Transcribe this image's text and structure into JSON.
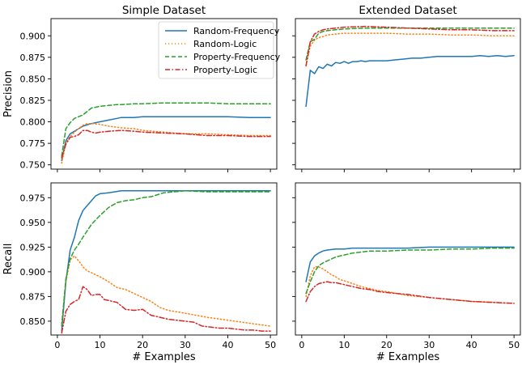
{
  "colors": {
    "Random-Frequency": "#1f77b4",
    "Random-Logic": "#ff7f0e",
    "Property-Frequency": "#2ca02c",
    "Property-Logic": "#d62728"
  },
  "dashes": {
    "Random-Frequency": "none",
    "Random-Logic": "1.2,2.8",
    "Property-Frequency": "5,3",
    "Property-Logic": "6,2.5,1.5,2.5"
  },
  "chart_data": [
    {
      "type": "line",
      "title": "Simple Dataset",
      "ylabel": "Precision",
      "xlabel": "",
      "xlim": [
        -1.5,
        51.5
      ],
      "ylim": [
        0.745,
        0.92
      ],
      "xticks": [
        0,
        10,
        20,
        30,
        40,
        50
      ],
      "yticks": [
        0.75,
        0.775,
        0.8,
        0.825,
        0.85,
        0.875,
        0.9
      ],
      "ytick_labels": [
        "0.750",
        "0.775",
        "0.800",
        "0.825",
        "0.850",
        "0.875",
        "0.900"
      ],
      "legend": "top-right",
      "series": [
        {
          "name": "Random-Frequency",
          "x": [
            1,
            2,
            3,
            4,
            5,
            6,
            8,
            10,
            12,
            14,
            15,
            18,
            20,
            25,
            30,
            35,
            40,
            45,
            50
          ],
          "y": [
            0.755,
            0.778,
            0.786,
            0.789,
            0.792,
            0.795,
            0.798,
            0.8,
            0.802,
            0.804,
            0.805,
            0.805,
            0.806,
            0.806,
            0.806,
            0.806,
            0.806,
            0.805,
            0.805
          ]
        },
        {
          "name": "Random-Logic",
          "x": [
            1,
            2,
            3,
            4,
            5,
            6,
            7,
            8,
            10,
            12,
            15,
            18,
            20,
            25,
            30,
            35,
            40,
            45,
            50
          ],
          "y": [
            0.752,
            0.775,
            0.783,
            0.788,
            0.792,
            0.796,
            0.798,
            0.798,
            0.797,
            0.795,
            0.793,
            0.792,
            0.79,
            0.788,
            0.786,
            0.786,
            0.785,
            0.784,
            0.784
          ]
        },
        {
          "name": "Property-Frequency",
          "x": [
            1,
            2,
            3,
            4,
            5,
            6,
            8,
            10,
            12,
            14,
            15,
            18,
            20,
            25,
            30,
            35,
            40,
            45,
            50
          ],
          "y": [
            0.76,
            0.792,
            0.799,
            0.804,
            0.806,
            0.808,
            0.816,
            0.818,
            0.819,
            0.82,
            0.82,
            0.821,
            0.821,
            0.822,
            0.822,
            0.822,
            0.821,
            0.821,
            0.821
          ]
        },
        {
          "name": "Property-Logic",
          "x": [
            1,
            2,
            3,
            4,
            5,
            6,
            7,
            8,
            9,
            10,
            12,
            15,
            18,
            20,
            25,
            30,
            35,
            40,
            45,
            50
          ],
          "y": [
            0.758,
            0.774,
            0.782,
            0.783,
            0.785,
            0.79,
            0.79,
            0.788,
            0.787,
            0.788,
            0.789,
            0.79,
            0.789,
            0.788,
            0.787,
            0.786,
            0.784,
            0.784,
            0.783,
            0.783
          ]
        }
      ]
    },
    {
      "type": "line",
      "title": "Extended Dataset",
      "ylabel": "",
      "xlabel": "",
      "xlim": [
        -1.5,
        51.5
      ],
      "ylim": [
        0.745,
        0.92
      ],
      "xticks": [
        0,
        10,
        20,
        30,
        40,
        50
      ],
      "yticks": [
        0.75,
        0.775,
        0.8,
        0.825,
        0.85,
        0.875,
        0.9
      ],
      "series": [
        {
          "name": "Random-Frequency",
          "x": [
            1,
            2,
            3,
            4,
            5,
            6,
            7,
            8,
            9,
            10,
            11,
            12,
            13,
            14,
            15,
            16,
            17,
            18,
            20,
            22,
            24,
            26,
            28,
            30,
            32,
            34,
            36,
            38,
            40,
            42,
            44,
            46,
            48,
            50
          ],
          "y": [
            0.818,
            0.86,
            0.856,
            0.864,
            0.862,
            0.867,
            0.865,
            0.869,
            0.868,
            0.87,
            0.868,
            0.87,
            0.87,
            0.871,
            0.87,
            0.871,
            0.871,
            0.871,
            0.871,
            0.872,
            0.873,
            0.874,
            0.874,
            0.875,
            0.876,
            0.876,
            0.876,
            0.876,
            0.876,
            0.877,
            0.876,
            0.877,
            0.876,
            0.877
          ]
        },
        {
          "name": "Random-Logic",
          "x": [
            1,
            2,
            3,
            4,
            5,
            6,
            8,
            10,
            15,
            20,
            25,
            30,
            35,
            40,
            45,
            50
          ],
          "y": [
            0.866,
            0.888,
            0.895,
            0.898,
            0.899,
            0.901,
            0.902,
            0.903,
            0.903,
            0.903,
            0.902,
            0.902,
            0.901,
            0.901,
            0.9,
            0.9
          ]
        },
        {
          "name": "Property-Frequency",
          "x": [
            1,
            2,
            3,
            4,
            5,
            6,
            8,
            10,
            15,
            20,
            25,
            30,
            35,
            40,
            45,
            50
          ],
          "y": [
            0.872,
            0.893,
            0.896,
            0.903,
            0.905,
            0.906,
            0.907,
            0.908,
            0.909,
            0.909,
            0.909,
            0.909,
            0.909,
            0.909,
            0.909,
            0.909
          ]
        },
        {
          "name": "Property-Logic",
          "x": [
            1,
            2,
            3,
            4,
            5,
            6,
            8,
            10,
            15,
            20,
            25,
            30,
            35,
            40,
            45,
            50
          ],
          "y": [
            0.865,
            0.893,
            0.902,
            0.905,
            0.907,
            0.908,
            0.909,
            0.91,
            0.911,
            0.91,
            0.909,
            0.908,
            0.907,
            0.907,
            0.906,
            0.906
          ]
        }
      ]
    },
    {
      "type": "line",
      "title": "",
      "ylabel": "Recall",
      "xlabel": "# Examples",
      "xlim": [
        -1.5,
        51.5
      ],
      "ylim": [
        0.836,
        0.99
      ],
      "xticks": [
        0,
        10,
        20,
        30,
        40,
        50
      ],
      "xtick_labels": [
        "0",
        "10",
        "20",
        "30",
        "40",
        "50"
      ],
      "yticks": [
        0.85,
        0.875,
        0.9,
        0.925,
        0.95,
        0.975
      ],
      "ytick_labels": [
        "0.850",
        "0.875",
        "0.900",
        "0.925",
        "0.950",
        "0.975"
      ],
      "series": [
        {
          "name": "Random-Frequency",
          "x": [
            1,
            2,
            3,
            4,
            5,
            6,
            7,
            8,
            9,
            10,
            12,
            15,
            20,
            25,
            30,
            35,
            40,
            45,
            50
          ],
          "y": [
            0.84,
            0.89,
            0.922,
            0.935,
            0.952,
            0.962,
            0.967,
            0.972,
            0.977,
            0.979,
            0.98,
            0.982,
            0.982,
            0.982,
            0.982,
            0.982,
            0.982,
            0.982,
            0.982
          ]
        },
        {
          "name": "Random-Logic",
          "x": [
            1,
            2,
            3,
            4,
            5,
            6,
            7,
            8,
            10,
            12,
            14,
            15,
            16,
            18,
            20,
            22,
            24,
            26,
            30,
            35,
            40,
            45,
            50
          ],
          "y": [
            0.848,
            0.89,
            0.912,
            0.916,
            0.911,
            0.905,
            0.901,
            0.899,
            0.895,
            0.89,
            0.884,
            0.883,
            0.882,
            0.878,
            0.874,
            0.87,
            0.864,
            0.861,
            0.858,
            0.854,
            0.851,
            0.848,
            0.845
          ]
        },
        {
          "name": "Property-Frequency",
          "x": [
            1,
            2,
            3,
            4,
            5,
            6,
            8,
            10,
            12,
            14,
            16,
            18,
            20,
            22,
            25,
            30,
            35,
            40,
            45,
            50
          ],
          "y": [
            0.845,
            0.893,
            0.913,
            0.922,
            0.928,
            0.935,
            0.948,
            0.957,
            0.965,
            0.97,
            0.972,
            0.973,
            0.975,
            0.976,
            0.98,
            0.982,
            0.981,
            0.981,
            0.981,
            0.981
          ]
        },
        {
          "name": "Property-Logic",
          "x": [
            1,
            2,
            3,
            4,
            5,
            6,
            7,
            8,
            9,
            10,
            11,
            12,
            14,
            16,
            18,
            20,
            22,
            24,
            26,
            28,
            30,
            32,
            34,
            36,
            38,
            40,
            42,
            44,
            46,
            48,
            50
          ],
          "y": [
            0.838,
            0.86,
            0.867,
            0.87,
            0.872,
            0.885,
            0.882,
            0.876,
            0.877,
            0.877,
            0.872,
            0.871,
            0.869,
            0.862,
            0.861,
            0.862,
            0.856,
            0.854,
            0.852,
            0.851,
            0.85,
            0.849,
            0.845,
            0.844,
            0.843,
            0.843,
            0.842,
            0.841,
            0.841,
            0.84,
            0.84
          ]
        }
      ]
    },
    {
      "type": "line",
      "title": "",
      "ylabel": "",
      "xlabel": "# Examples",
      "xlim": [
        -1.5,
        51.5
      ],
      "ylim": [
        0.836,
        0.99
      ],
      "xticks": [
        0,
        10,
        20,
        30,
        40,
        50
      ],
      "xtick_labels": [
        "0",
        "10",
        "20",
        "30",
        "40",
        "50"
      ],
      "yticks": [
        0.85,
        0.875,
        0.9,
        0.925,
        0.95,
        0.975
      ],
      "series": [
        {
          "name": "Random-Frequency",
          "x": [
            1,
            2,
            3,
            4,
            5,
            6,
            8,
            10,
            12,
            15,
            20,
            25,
            30,
            35,
            40,
            45,
            50
          ],
          "y": [
            0.89,
            0.91,
            0.916,
            0.919,
            0.921,
            0.922,
            0.923,
            0.923,
            0.924,
            0.924,
            0.924,
            0.924,
            0.925,
            0.925,
            0.925,
            0.925,
            0.925
          ]
        },
        {
          "name": "Random-Logic",
          "x": [
            1,
            2,
            3,
            4,
            5,
            6,
            7,
            8,
            9,
            10,
            12,
            14,
            16,
            18,
            20,
            25,
            30,
            35,
            40,
            45,
            50
          ],
          "y": [
            0.875,
            0.896,
            0.905,
            0.905,
            0.903,
            0.9,
            0.897,
            0.895,
            0.892,
            0.891,
            0.888,
            0.885,
            0.883,
            0.881,
            0.88,
            0.876,
            0.874,
            0.872,
            0.87,
            0.869,
            0.868
          ]
        },
        {
          "name": "Property-Frequency",
          "x": [
            1,
            2,
            3,
            4,
            5,
            6,
            7,
            8,
            10,
            12,
            14,
            16,
            18,
            20,
            25,
            30,
            35,
            40,
            45,
            50
          ],
          "y": [
            0.878,
            0.89,
            0.9,
            0.906,
            0.909,
            0.911,
            0.913,
            0.915,
            0.917,
            0.919,
            0.92,
            0.921,
            0.921,
            0.921,
            0.922,
            0.922,
            0.923,
            0.923,
            0.924,
            0.924
          ]
        },
        {
          "name": "Property-Logic",
          "x": [
            1,
            2,
            3,
            4,
            5,
            6,
            7,
            8,
            10,
            12,
            14,
            16,
            18,
            20,
            25,
            30,
            35,
            40,
            45,
            50
          ],
          "y": [
            0.87,
            0.88,
            0.885,
            0.888,
            0.889,
            0.89,
            0.889,
            0.889,
            0.887,
            0.885,
            0.883,
            0.882,
            0.88,
            0.879,
            0.877,
            0.874,
            0.872,
            0.87,
            0.869,
            0.868
          ]
        }
      ]
    }
  ]
}
